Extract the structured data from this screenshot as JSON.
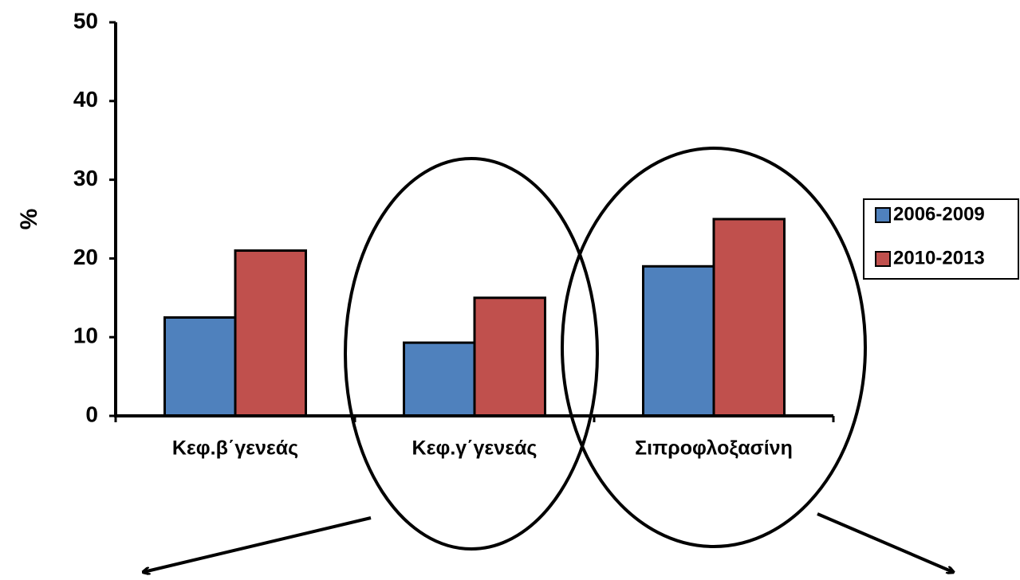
{
  "chart_data": {
    "type": "bar",
    "y_label": "%",
    "categories": [
      "Κεφ.β΄γενεάς",
      "Κεφ.γ΄γενεάς",
      "Σιπροφλοξασίνη"
    ],
    "series": [
      {
        "name": "2006-2009",
        "color": "#4f81bd",
        "values": [
          12.5,
          9.3,
          19
        ]
      },
      {
        "name": "2010-2013",
        "color": "#c0504d",
        "values": [
          21,
          15,
          25
        ]
      }
    ],
    "ylim": [
      0,
      50
    ],
    "yticks": [
      0,
      10,
      20,
      30,
      40,
      50
    ],
    "legend": "right"
  }
}
